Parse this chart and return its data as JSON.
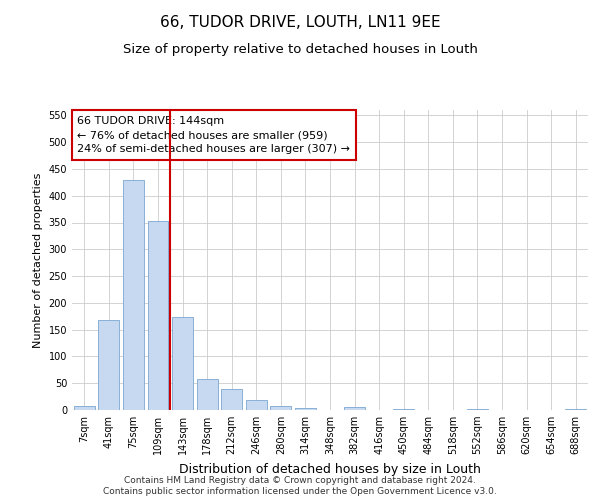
{
  "title": "66, TUDOR DRIVE, LOUTH, LN11 9EE",
  "subtitle": "Size of property relative to detached houses in Louth",
  "xlabel": "Distribution of detached houses by size in Louth",
  "ylabel": "Number of detached properties",
  "bar_color": "#c6d9f0",
  "bar_edge_color": "#7aa6d1",
  "background_color": "#ffffff",
  "grid_color": "#cccccc",
  "vline_color": "#cc0000",
  "categories": [
    "7sqm",
    "41sqm",
    "75sqm",
    "109sqm",
    "143sqm",
    "178sqm",
    "212sqm",
    "246sqm",
    "280sqm",
    "314sqm",
    "348sqm",
    "382sqm",
    "416sqm",
    "450sqm",
    "484sqm",
    "518sqm",
    "552sqm",
    "586sqm",
    "620sqm",
    "654sqm",
    "688sqm"
  ],
  "values": [
    8,
    168,
    430,
    353,
    174,
    57,
    40,
    18,
    8,
    4,
    0,
    5,
    0,
    2,
    0,
    0,
    1,
    0,
    0,
    0,
    2
  ],
  "ylim": [
    0,
    560
  ],
  "yticks": [
    0,
    50,
    100,
    150,
    200,
    250,
    300,
    350,
    400,
    450,
    500,
    550
  ],
  "annotation_text": "66 TUDOR DRIVE: 144sqm\n← 76% of detached houses are smaller (959)\n24% of semi-detached houses are larger (307) →",
  "annotation_box_color": "#ffffff",
  "annotation_box_edge": "#cc0000",
  "footer_line1": "Contains HM Land Registry data © Crown copyright and database right 2024.",
  "footer_line2": "Contains public sector information licensed under the Open Government Licence v3.0.",
  "title_fontsize": 11,
  "subtitle_fontsize": 9.5,
  "xlabel_fontsize": 9,
  "ylabel_fontsize": 8,
  "tick_fontsize": 7,
  "annotation_fontsize": 8,
  "footer_fontsize": 6.5
}
